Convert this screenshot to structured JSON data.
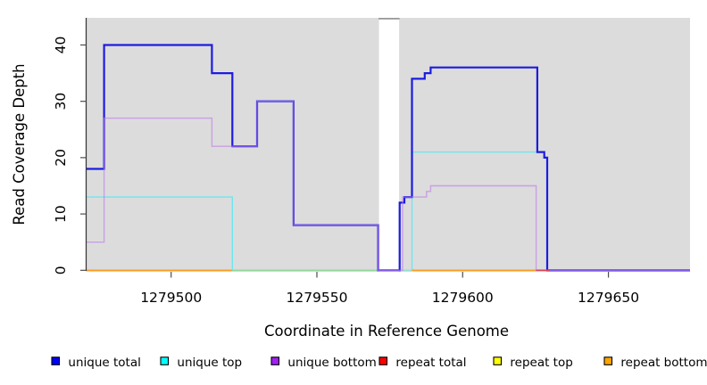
{
  "figure": {
    "xlabel": "Coordinate in Reference Genome",
    "ylabel": "Read Coverage Depth"
  },
  "chart_data": {
    "type": "line",
    "subtype": "step",
    "title": "",
    "xlabel": "Coordinate in Reference Genome",
    "ylabel": "Read Coverage Depth",
    "xlim": [
      1279471,
      1279678
    ],
    "ylim": [
      0,
      45
    ],
    "x_ticks": [
      1279500,
      1279550,
      1279600,
      1279650
    ],
    "y_ticks": [
      0,
      10,
      20,
      30,
      40
    ],
    "grid": false,
    "legend_position": "bottom",
    "plot_bg_color": "#dcdcdc",
    "gap_region": {
      "from": 1279571.3,
      "to": 1279578.2,
      "fill": "#ffffff",
      "cap_color": "#909090"
    },
    "series": [
      {
        "name": "unique-total",
        "label": "unique total",
        "legend_color": "#0000ff",
        "line_color": "#1c1ce0",
        "width": 2.2,
        "opacity": 1,
        "layer": 2,
        "drawn": true,
        "steps": [
          [
            1279471,
            18
          ],
          [
            1279477,
            40
          ],
          [
            1279514,
            35
          ],
          [
            1279521,
            22
          ],
          [
            1279529.5,
            30
          ],
          [
            1279542,
            8
          ],
          [
            1279571,
            0
          ],
          [
            1279578.4,
            12
          ],
          [
            1279580,
            13
          ],
          [
            1279582.6,
            34
          ],
          [
            1279587,
            35
          ],
          [
            1279589,
            36
          ],
          [
            1279625.6,
            21
          ],
          [
            1279628,
            20
          ],
          [
            1279629,
            0
          ]
        ],
        "end": 1279678
      },
      {
        "name": "unique-top",
        "label": "unique top",
        "legend_color": "#00ffff",
        "line_color": "#6ee6ee",
        "width": 1.4,
        "opacity": 1,
        "layer": 1,
        "drawn": true,
        "steps": [
          [
            1279471,
            13
          ],
          [
            1279521,
            0
          ],
          [
            1279582.6,
            21
          ],
          [
            1279628,
            20
          ],
          [
            1279629,
            0
          ]
        ],
        "end": 1279629.5
      },
      {
        "name": "unique-bottom",
        "label": "unique bottom",
        "legend_color": "#a020f0",
        "line_color": "#bf7fe8",
        "width": 1.4,
        "opacity": 0.65,
        "layer": 3,
        "drawn": true,
        "steps": [
          [
            1279471,
            5
          ],
          [
            1279477,
            27
          ],
          [
            1279514,
            22
          ],
          [
            1279529.5,
            30
          ],
          [
            1279542,
            8
          ],
          [
            1279571,
            0
          ],
          [
            1279579.4,
            13
          ],
          [
            1279587.6,
            14
          ],
          [
            1279589,
            15
          ],
          [
            1279625.2,
            0
          ]
        ],
        "end": 1279678
      },
      {
        "name": "repeat-total",
        "label": "repeat total",
        "legend_color": "#ff0000",
        "line_color": "#dd4455",
        "width": 1.6,
        "opacity": 1,
        "layer": 0,
        "drawn": false,
        "steps": [
          [
            1279471,
            0
          ]
        ],
        "end": 1279678
      },
      {
        "name": "repeat-top",
        "label": "repeat top",
        "legend_color": "#ffff00",
        "line_color": "#ffff00",
        "width": 1.6,
        "opacity": 1,
        "layer": 0,
        "drawn": false,
        "steps": [
          [
            1279471,
            0
          ]
        ],
        "end": 1279678
      },
      {
        "name": "repeat-bottom",
        "label": "repeat bottom",
        "legend_color": "#ffa500",
        "line_color": "#ff9c20",
        "width": 1.6,
        "opacity": 1,
        "layer": 0,
        "drawn": false,
        "steps": [
          [
            1279471,
            0
          ]
        ],
        "end": 1279678
      }
    ],
    "baseline_segments": [
      {
        "from": 1279471,
        "to": 1279520.9,
        "color": "#ff9c20",
        "width": 1.7,
        "layer": 1.5
      },
      {
        "from": 1279520.9,
        "to": 1279570.9,
        "color": "#94d89c",
        "width": 1.7,
        "layer": 1.5
      },
      {
        "from": 1279578.2,
        "to": 1279582.6,
        "color": "#98dfd2",
        "width": 1.7,
        "layer": 1.5
      },
      {
        "from": 1279582.6,
        "to": 1279625.2,
        "color": "#ff9c20",
        "width": 1.7,
        "layer": 1.5
      },
      {
        "from": 1279625.2,
        "to": 1279629.6,
        "color": "#dd4455",
        "width": 1.7,
        "layer": 4
      }
    ]
  }
}
